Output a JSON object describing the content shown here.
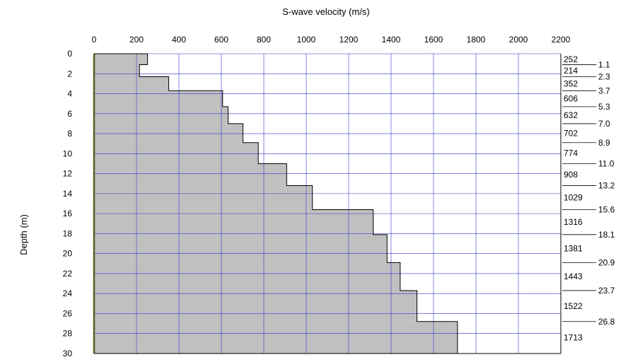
{
  "chart_data": {
    "type": "area",
    "xlabel": "S-wave velocity (m/s)",
    "ylabel": "Depth (m)",
    "xlim": [
      0,
      2200
    ],
    "ylim": [
      0,
      30
    ],
    "xticks": [
      0,
      200,
      400,
      600,
      800,
      1000,
      1200,
      1400,
      1600,
      1800,
      2000,
      2200
    ],
    "yticks": [
      0,
      2,
      4,
      6,
      8,
      10,
      12,
      14,
      16,
      18,
      20,
      22,
      24,
      26,
      28,
      30
    ],
    "grid": true,
    "fill_color": "#c0c0c0",
    "grid_color": "#3333cc",
    "surface_line_color": "#5a5a1e",
    "layers": [
      {
        "top": 0.0,
        "bottom": 1.1,
        "velocity": 252
      },
      {
        "top": 1.1,
        "bottom": 2.3,
        "velocity": 214
      },
      {
        "top": 2.3,
        "bottom": 3.7,
        "velocity": 352
      },
      {
        "top": 3.7,
        "bottom": 5.3,
        "velocity": 606
      },
      {
        "top": 5.3,
        "bottom": 7.0,
        "velocity": 632
      },
      {
        "top": 7.0,
        "bottom": 8.9,
        "velocity": 702
      },
      {
        "top": 8.9,
        "bottom": 11.0,
        "velocity": 774
      },
      {
        "top": 11.0,
        "bottom": 13.2,
        "velocity": 908
      },
      {
        "top": 13.2,
        "bottom": 15.6,
        "velocity": 1029
      },
      {
        "top": 15.6,
        "bottom": 18.1,
        "velocity": 1316
      },
      {
        "top": 18.1,
        "bottom": 20.9,
        "velocity": 1381
      },
      {
        "top": 20.9,
        "bottom": 23.7,
        "velocity": 1443
      },
      {
        "top": 23.7,
        "bottom": 26.8,
        "velocity": 1522
      },
      {
        "top": 26.8,
        "bottom": 30.0,
        "velocity": 1713
      }
    ],
    "boundary_labels": [
      "1.1",
      "2.3",
      "3.7",
      "5.3",
      "7.0",
      "8.9",
      "11.0",
      "13.2",
      "15.6",
      "18.1",
      "20.9",
      "23.7",
      "26.8"
    ]
  }
}
